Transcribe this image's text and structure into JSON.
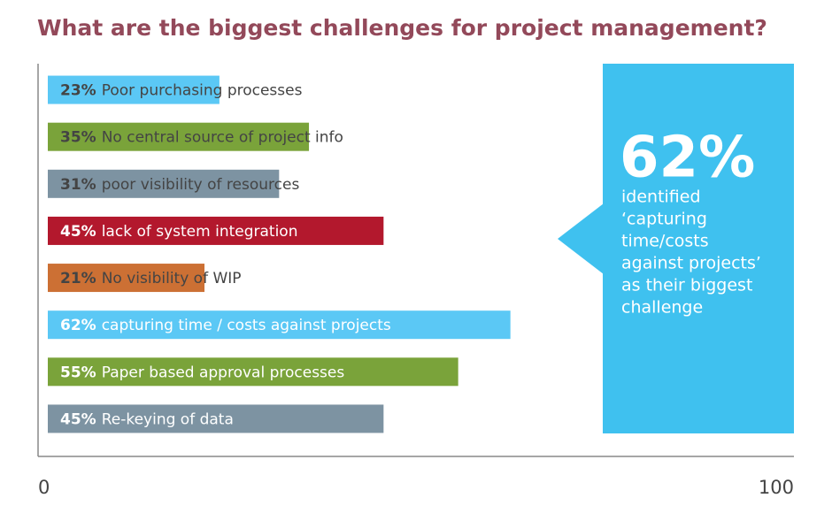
{
  "chart_data": {
    "type": "hbar",
    "title": "What are the biggest challenges for project management?",
    "categories": [
      "Poor purchasing processes",
      "No central source of project info",
      "poor visibility of resources",
      "lack of system integration",
      "No visibility of WIP",
      "capturing time / costs against projects",
      "Paper based approval processes",
      "Re-keying of data"
    ],
    "values": [
      23,
      35,
      31,
      45,
      21,
      62,
      55,
      45
    ],
    "value_labels": [
      "23%",
      "35%",
      "31%",
      "45%",
      "21%",
      "62%",
      "55%",
      "45%"
    ],
    "colors": [
      "#5bc8f5",
      "#7aa33a",
      "#7d93a2",
      "#b3182d",
      "#cc7034",
      "#5bc8f5",
      "#7aa33a",
      "#7d93a2"
    ],
    "xlim": [
      0,
      100
    ],
    "xticks": [
      0,
      100
    ],
    "callout": {
      "color": "#3fc1ef",
      "headline": "62%",
      "lines": [
        "identified",
        "‘capturing",
        "time/costs",
        "against projects’",
        "as their biggest",
        "challenge"
      ]
    }
  }
}
